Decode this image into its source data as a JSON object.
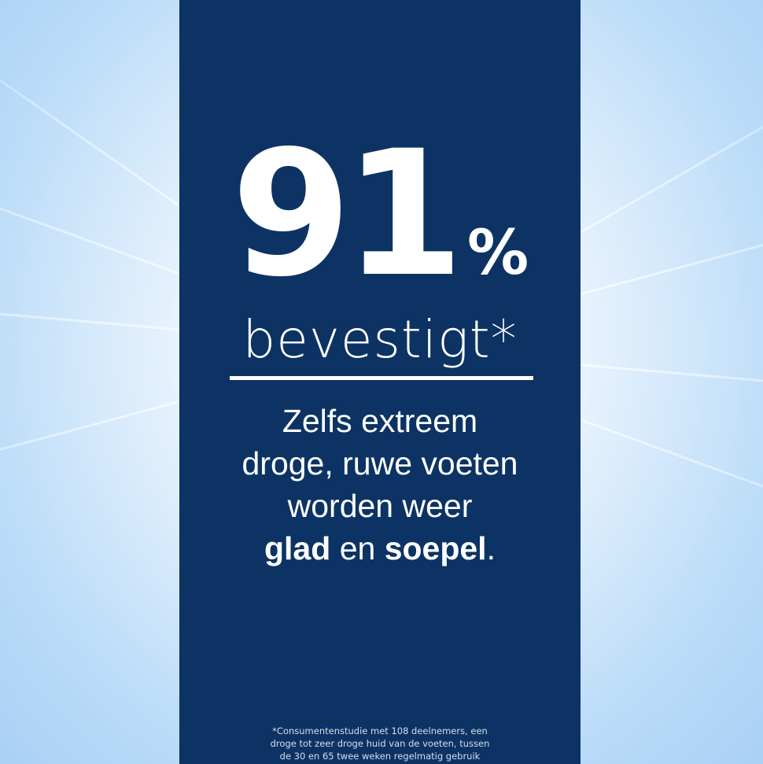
{
  "headline": {
    "number": "91",
    "percent": "%",
    "label": "bevestigt*"
  },
  "body": {
    "line1": "Zelfs extreem",
    "line2": "droge, ruwe voeten",
    "line3": "worden weer",
    "line4_bold1": "glad",
    "line4_mid": " en ",
    "line4_bold2": "soepel",
    "line4_end": "."
  },
  "footnote": {
    "line1": "*Consumentenstudie met 108 deelnemers, een",
    "line2": "droge tot zeer droge huid van de voeten, tussen",
    "line3": "de 30 en 65 twee weken regelmatig gebruik"
  },
  "colors": {
    "panel": "#0c3364",
    "background": "#bcdcf8",
    "text": "#ffffff"
  }
}
